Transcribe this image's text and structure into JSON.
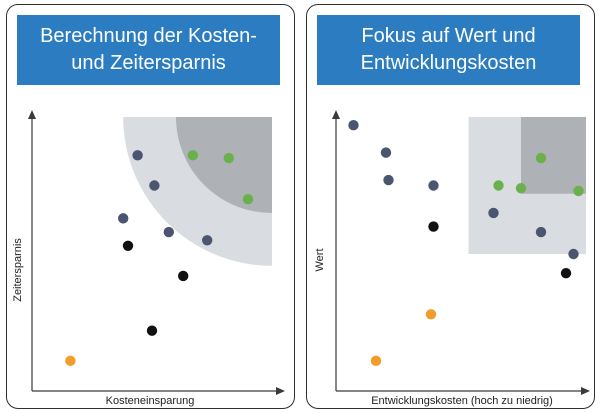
{
  "panels": [
    {
      "title_line1": "Berechnung der Kosten-",
      "title_line2": "und Zeitersparnis",
      "xlabel": "Kosteneinsparung",
      "ylabel": "Zeitersparnis"
    },
    {
      "title_line1": "Fokus auf Wert und",
      "title_line2": "Entwicklungskosten",
      "xlabel": "Entwicklungskosten (hoch zu niedrig)",
      "ylabel": "Wert"
    }
  ],
  "colors": {
    "banner": "#2b7cc0",
    "zone_outer": "#d9dce0",
    "zone_inner": "#aeb1b6",
    "slate": "#4a5570",
    "green": "#6ab04c",
    "black": "#111111",
    "orange": "#f39c2b",
    "axis": "#3a3a3a"
  },
  "chart_data": [
    {
      "type": "scatter",
      "xlim": [
        0,
        100
      ],
      "ylim": [
        0,
        100
      ],
      "highlight_zones": [
        {
          "shape": "quarter-annulus",
          "corner": "top-right",
          "radius": [
            0,
            62
          ],
          "color": "zone_outer"
        },
        {
          "shape": "quarter-disc",
          "corner": "top-right",
          "radius": [
            0,
            40
          ],
          "color": "zone_inner"
        }
      ],
      "points": [
        {
          "x": 44,
          "y": 86,
          "color": "slate"
        },
        {
          "x": 67,
          "y": 86,
          "color": "green"
        },
        {
          "x": 82,
          "y": 85,
          "color": "green"
        },
        {
          "x": 51,
          "y": 75,
          "color": "slate"
        },
        {
          "x": 90,
          "y": 70,
          "color": "green"
        },
        {
          "x": 38,
          "y": 63,
          "color": "slate"
        },
        {
          "x": 57,
          "y": 58,
          "color": "slate"
        },
        {
          "x": 73,
          "y": 55,
          "color": "slate"
        },
        {
          "x": 40,
          "y": 53,
          "color": "black"
        },
        {
          "x": 63,
          "y": 42,
          "color": "black"
        },
        {
          "x": 50,
          "y": 22,
          "color": "black"
        },
        {
          "x": 16,
          "y": 11,
          "color": "orange"
        }
      ]
    },
    {
      "type": "scatter",
      "xlim": [
        0,
        100
      ],
      "ylim": [
        0,
        100
      ],
      "highlight_zones": [
        {
          "shape": "rect",
          "x": [
            53,
            100
          ],
          "y": [
            50,
            100
          ],
          "color": "zone_outer"
        },
        {
          "shape": "rect",
          "x": [
            74,
            100
          ],
          "y": [
            72,
            100
          ],
          "color": "zone_inner"
        }
      ],
      "points": [
        {
          "x": 7,
          "y": 97,
          "color": "slate"
        },
        {
          "x": 20,
          "y": 87,
          "color": "slate"
        },
        {
          "x": 82,
          "y": 85,
          "color": "green"
        },
        {
          "x": 21,
          "y": 77,
          "color": "slate"
        },
        {
          "x": 39,
          "y": 75,
          "color": "slate"
        },
        {
          "x": 65,
          "y": 75,
          "color": "green"
        },
        {
          "x": 74,
          "y": 74,
          "color": "green"
        },
        {
          "x": 97,
          "y": 73,
          "color": "green"
        },
        {
          "x": 63,
          "y": 65,
          "color": "slate"
        },
        {
          "x": 39,
          "y": 60,
          "color": "black"
        },
        {
          "x": 82,
          "y": 58,
          "color": "slate"
        },
        {
          "x": 95,
          "y": 50,
          "color": "slate"
        },
        {
          "x": 92,
          "y": 43,
          "color": "black"
        },
        {
          "x": 38,
          "y": 28,
          "color": "orange"
        },
        {
          "x": 16,
          "y": 11,
          "color": "orange"
        }
      ]
    }
  ]
}
